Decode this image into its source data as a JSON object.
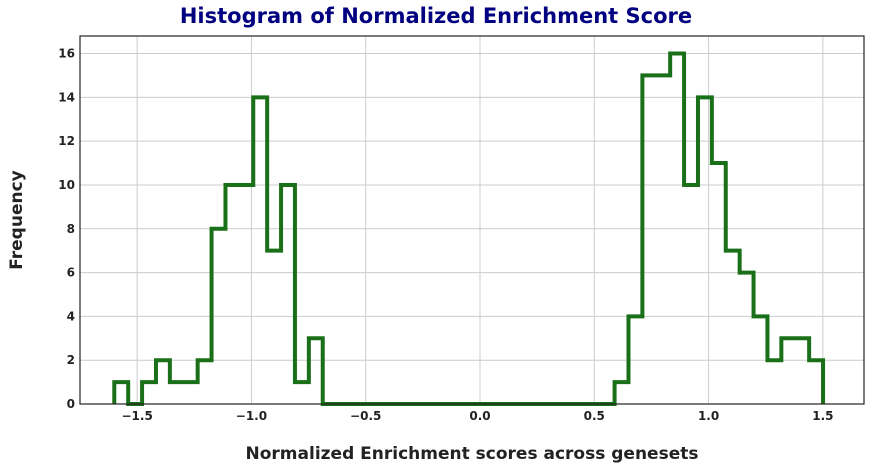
{
  "chart_data": {
    "type": "histogram",
    "title": "Histogram of Normalized Enrichment Score",
    "xlabel": "Normalized Enrichment scores across genesets",
    "ylabel": "Frequency",
    "xlim": [
      -1.75,
      1.68
    ],
    "ylim": [
      0,
      16.8
    ],
    "xticks": [
      -1.5,
      -1.0,
      -0.5,
      0.0,
      0.5,
      1.0,
      1.5
    ],
    "xtick_labels": [
      "−1.5",
      "−1.0",
      "−0.5",
      "0.0",
      "0.5",
      "1.0",
      "1.5"
    ],
    "yticks": [
      0,
      2,
      4,
      6,
      8,
      10,
      12,
      14,
      16
    ],
    "ytick_labels": [
      "0",
      "2",
      "4",
      "6",
      "8",
      "10",
      "12",
      "14",
      "16"
    ],
    "grid": true,
    "line_color": "#1a7019",
    "bin_start": -1.6,
    "bin_width": 0.0608,
    "counts": [
      1,
      0,
      1,
      2,
      1,
      1,
      2,
      8,
      10,
      10,
      14,
      7,
      10,
      1,
      3,
      0,
      0,
      0,
      0,
      0,
      0,
      0,
      0,
      0,
      0,
      0,
      0,
      0,
      0,
      0,
      0,
      0,
      0,
      0,
      0,
      0,
      1,
      4,
      15,
      15,
      16,
      10,
      14,
      11,
      7,
      6,
      4,
      2,
      3,
      3,
      2
    ]
  }
}
